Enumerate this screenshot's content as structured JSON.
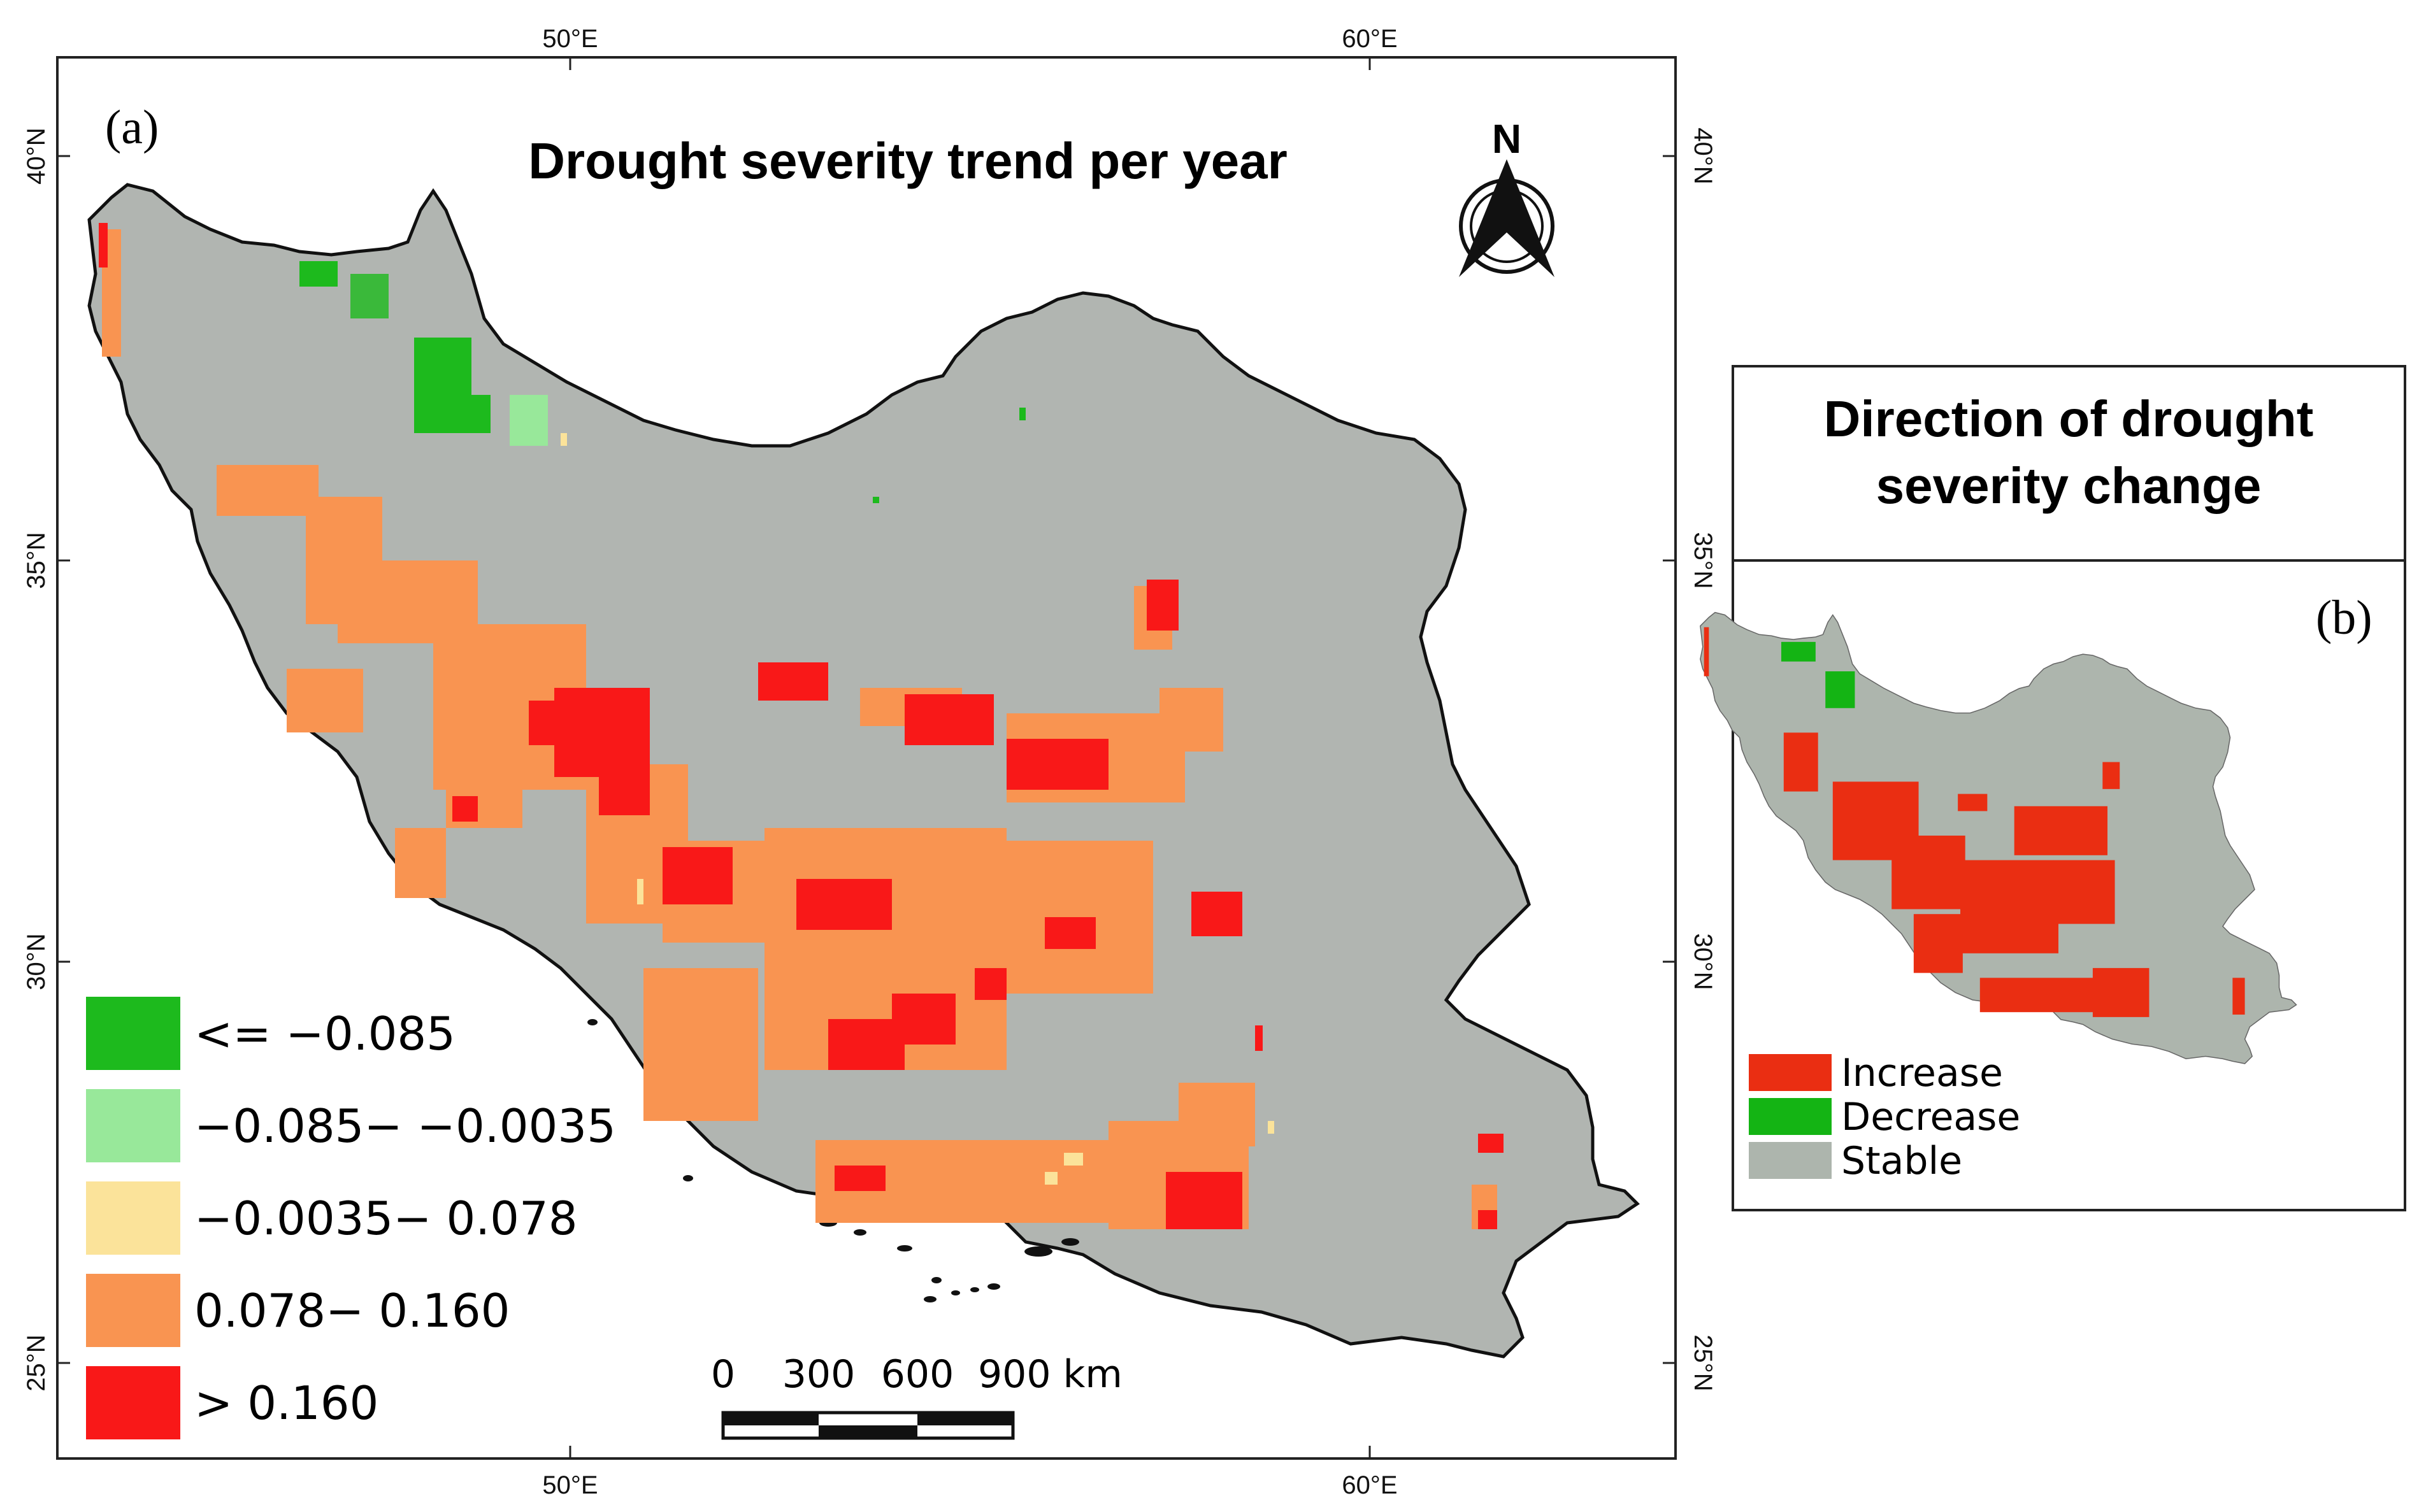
{
  "map_a": {
    "panel_label": "(a)",
    "title": "Drought severity trend per year",
    "north_label": "N",
    "top_lon_labels": [
      "50°E",
      "60°E"
    ],
    "bottom_lon_labels": [
      "50°E",
      "60°E"
    ],
    "left_lat_labels": [
      "40°N",
      "35°N",
      "30°N",
      "25°N"
    ],
    "right_lat_labels": [
      "40°N",
      "35°N",
      "30°N",
      "25°N"
    ],
    "legend": [
      {
        "label": "<= −0.085",
        "color": "#1dba1d"
      },
      {
        "label": "−0.085− −0.0035",
        "color": "#98e89a"
      },
      {
        "label": "−0.0035− 0.078",
        "color": "#fbe39a"
      },
      {
        "label": "0.078− 0.160",
        "color": "#f99451"
      },
      {
        "label": "> 0.160",
        "color": "#f91818"
      }
    ],
    "scale_bar": {
      "labels": [
        "0",
        "300",
        "600",
        "900 km"
      ]
    },
    "land_color": "#b1b5b1"
  },
  "map_b": {
    "panel_label": "(b)",
    "title_line1": "Direction of drought",
    "title_line2": "severity change",
    "legend": [
      {
        "label": "Increase",
        "color": "#ea2e12"
      },
      {
        "label": "Decrease",
        "color": "#14b414"
      },
      {
        "label": "Stable",
        "color": "#adb5ad"
      }
    ]
  }
}
